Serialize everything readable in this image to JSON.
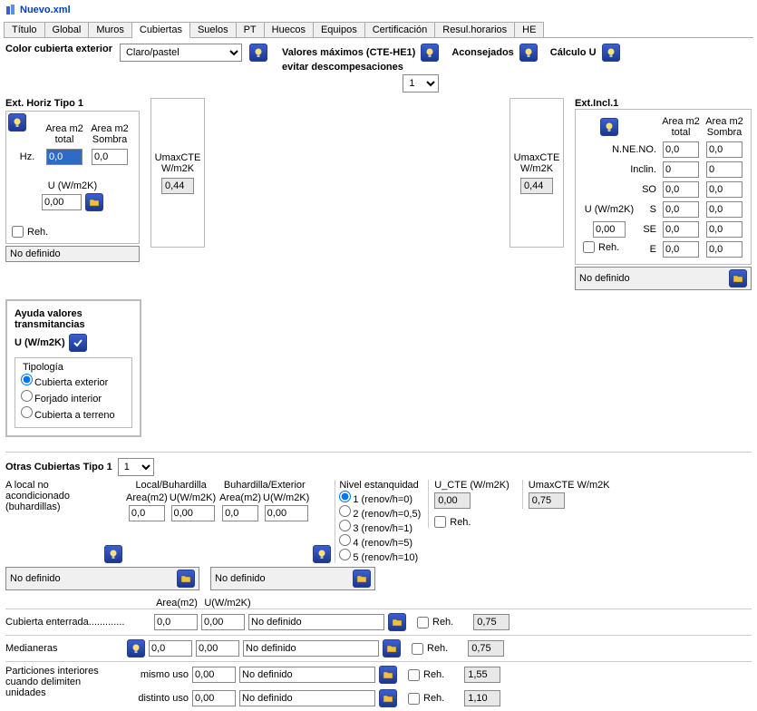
{
  "title": "Nuevo.xml",
  "tabs": [
    "Título",
    "Global",
    "Muros",
    "Cubiertas",
    "Suelos",
    "PT",
    "Huecos",
    "Equipos",
    "Certificación",
    "Resul.horarios",
    "HE"
  ],
  "activeTab": 3,
  "topRow": {
    "colorLabel": "Color cubierta exterior",
    "colorValue": "Claro/pastel",
    "maxLabel1": "Valores máximos (CTE-HE1)",
    "maxLabel2": "evitar descompesaciones",
    "aconsejados": "Aconsejados",
    "calculoU": "Cálculo U",
    "selectorValue": "1"
  },
  "extHoriz": {
    "title": "Ext. Horiz Tipo 1",
    "areaTotalLabel": "Area m2 total",
    "areaSombraLabel": "Area m2 Sombra",
    "hzLabel": "Hz.",
    "areaTotal": "0,0",
    "areaSombra": "0,0",
    "uLabel": "U (W/m2K)",
    "uValue": "0,00",
    "rehLabel": "Reh.",
    "noDefinido": "No definido",
    "umaxCTELabel": "UmaxCTE W/m2K",
    "umaxCTEValue": "0,44"
  },
  "rightMax": {
    "umaxCTELabel": "UmaxCTE W/m2K",
    "umaxCTEValue": "0,44"
  },
  "extIncl": {
    "title": "Ext.Incl.1",
    "areaTotalLabel": "Area m2 total",
    "areaSombraLabel": "Area m2 Sombra",
    "rows": [
      "N.NE.NO.",
      "Inclin.",
      "SO",
      "S",
      "SE",
      "E"
    ],
    "uLabel": "U (W/m2K)",
    "uValue": "0,00",
    "values": [
      [
        "0,0",
        "0,0"
      ],
      [
        "0",
        "0"
      ],
      [
        "0,0",
        "0,0"
      ],
      [
        "0,0",
        "0,0"
      ],
      [
        "0,0",
        "0,0"
      ],
      [
        "0,0",
        "0,0"
      ]
    ],
    "rehLabel": "Reh.",
    "noDefinido": "No definido"
  },
  "help": {
    "title": "Ayuda valores transmitancias",
    "sub": "U (W/m2K)",
    "tipologia": "Tipología",
    "options": [
      "Cubierta exterior",
      "Forjado interior",
      "Cubierta a terreno"
    ]
  },
  "otras": {
    "header": "Otras Cubiertas Tipo 1",
    "selector": "1",
    "aLocal": "A local no acondicionado (buhardillas)",
    "localBuh": "Local/Buhardilla",
    "buhExt": "Buhardilla/Exterior",
    "areaLabel": "Area(m2)",
    "uLabel": "U(W/m2K)",
    "areaVal1": "0,0",
    "uVal1": "0,00",
    "areaVal2": "0,0",
    "uVal2": "0,00",
    "nivelLabel": "Nivel estanquidad",
    "nivelOptions": [
      "1 (renov/h=0)",
      "2 (renov/h=0,5)",
      "3 (renov/h=1)",
      "4 (renov/h=5)",
      "5 (renov/h=10)"
    ],
    "uCTELabel": "U_CTE (W/m2K)",
    "uCTEValue": "0,00",
    "umaxCTELabel": "UmaxCTE W/m2K",
    "umaxCTEValue": "0,75",
    "rehLabel": "Reh.",
    "noDefinido1": "No definido",
    "noDefinido2": "No definido",
    "enterradaLabel": "Cubierta enterrada.............",
    "enterradaArea": "0,0",
    "enterradaU": "0,00",
    "enterradaND": "No definido",
    "enterradaUmax": "0,75",
    "medianerasLabel": "Medianeras",
    "medianerasArea": "0,0",
    "medianerasU": "0,00",
    "medianerasND": "No definido",
    "medianerasUmax": "0,75",
    "particionesLabel": "Particiones interiores cuando delimiten unidades",
    "mismoUso": "mismo uso",
    "distintoUso": "distinto uso",
    "particionesU1": "0,00",
    "particionesU2": "0,00",
    "particionesND1": "No definido",
    "particionesND2": "No definido",
    "particionesUmax1": "1,55",
    "particionesUmax2": "1,10"
  }
}
